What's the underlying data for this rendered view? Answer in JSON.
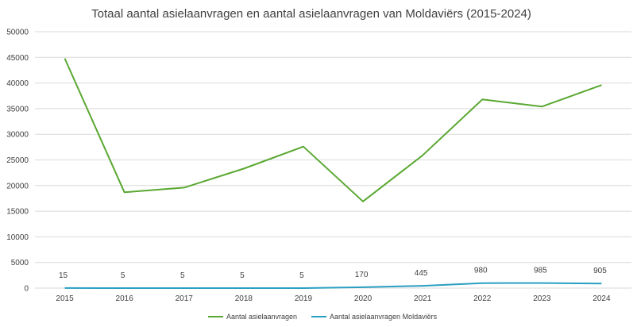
{
  "chart_data": {
    "type": "line",
    "title": "Totaal aantal asielaanvragen en aantal asielaanvragen van Moldaviërs (2015-2024)",
    "xlabel": "",
    "ylabel": "",
    "categories": [
      "2015",
      "2016",
      "2017",
      "2018",
      "2019",
      "2020",
      "2021",
      "2022",
      "2023",
      "2024"
    ],
    "ylim": [
      0,
      50000
    ],
    "yticks": [
      0,
      5000,
      10000,
      15000,
      20000,
      25000,
      30000,
      35000,
      40000,
      45000,
      50000
    ],
    "grid": true,
    "legend_position": "bottom",
    "series": [
      {
        "name": "Aantal asielaanvragen",
        "color": "#5aa832",
        "values": [
          44800,
          18700,
          19600,
          23300,
          27600,
          16900,
          25900,
          36800,
          35400,
          39600
        ],
        "labels": []
      },
      {
        "name": "Aantal asielaanvragen Moldaviërs",
        "color": "#2a9fc2",
        "values": [
          15,
          5,
          5,
          5,
          5,
          170,
          445,
          980,
          985,
          905
        ],
        "labels": [
          "15",
          "5",
          "5",
          "5",
          "5",
          "170",
          "445",
          "980",
          "985",
          "905"
        ]
      }
    ]
  }
}
